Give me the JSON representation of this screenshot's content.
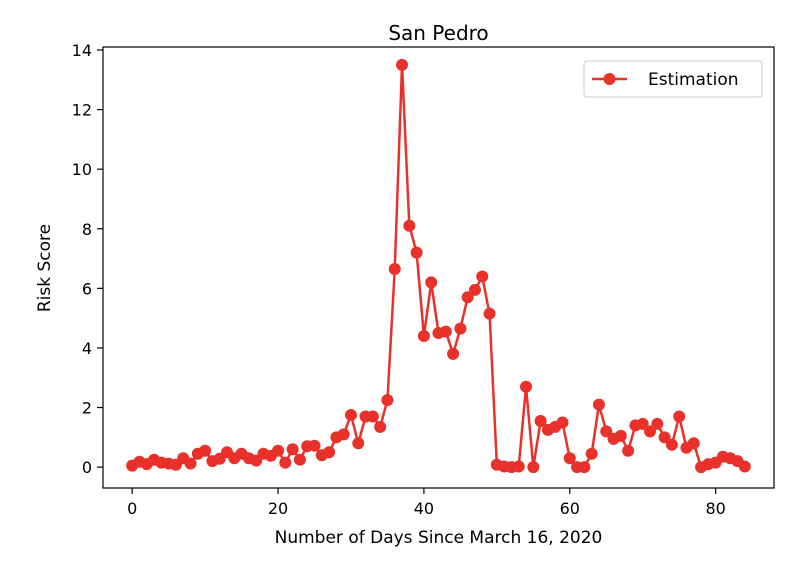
{
  "chart_data": {
    "type": "line",
    "title": "San Pedro",
    "xlabel": "Number of Days Since March 16, 2020",
    "ylabel": "Risk Score",
    "xlim": [
      -4,
      88
    ],
    "ylim": [
      -0.7,
      14.1
    ],
    "xticks": [
      0,
      20,
      40,
      60,
      80
    ],
    "yticks": [
      0,
      2,
      4,
      6,
      8,
      10,
      12,
      14
    ],
    "grid": false,
    "legend_position": "top-right",
    "series": [
      {
        "name": "Estimation",
        "color": "#e8312a",
        "marker": "circle",
        "x": [
          0,
          1,
          2,
          3,
          4,
          5,
          6,
          7,
          8,
          9,
          10,
          11,
          12,
          13,
          14,
          15,
          16,
          17,
          18,
          19,
          20,
          21,
          22,
          23,
          24,
          25,
          26,
          27,
          28,
          29,
          30,
          31,
          32,
          33,
          34,
          35,
          36,
          37,
          38,
          39,
          40,
          41,
          42,
          43,
          44,
          45,
          46,
          47,
          48,
          49,
          50,
          51,
          52,
          53,
          54,
          55,
          56,
          57,
          58,
          59,
          60,
          61,
          62,
          63,
          64,
          65,
          66,
          67,
          68,
          69,
          70,
          71,
          72,
          73,
          74,
          75,
          76,
          77,
          78,
          79,
          80,
          81,
          82,
          83,
          84
        ],
        "y": [
          0.05,
          0.18,
          0.1,
          0.25,
          0.15,
          0.12,
          0.08,
          0.3,
          0.12,
          0.45,
          0.55,
          0.2,
          0.28,
          0.5,
          0.3,
          0.45,
          0.3,
          0.22,
          0.45,
          0.38,
          0.55,
          0.15,
          0.6,
          0.25,
          0.7,
          0.72,
          0.4,
          0.5,
          1.0,
          1.1,
          1.75,
          0.8,
          1.7,
          1.7,
          1.35,
          2.25,
          6.65,
          13.5,
          8.1,
          7.2,
          4.4,
          6.2,
          4.5,
          4.55,
          3.8,
          4.65,
          5.7,
          5.95,
          6.4,
          5.15,
          0.08,
          0.02,
          0.0,
          0.02,
          2.7,
          0.0,
          1.55,
          1.25,
          1.35,
          1.5,
          0.3,
          0.0,
          0.0,
          0.45,
          2.1,
          1.2,
          0.95,
          1.05,
          0.55,
          1.4,
          1.45,
          1.2,
          1.45,
          1.0,
          0.75,
          1.7,
          0.65,
          0.8,
          0.0,
          0.1,
          0.15,
          0.35,
          0.3,
          0.2,
          0.02
        ]
      }
    ]
  }
}
